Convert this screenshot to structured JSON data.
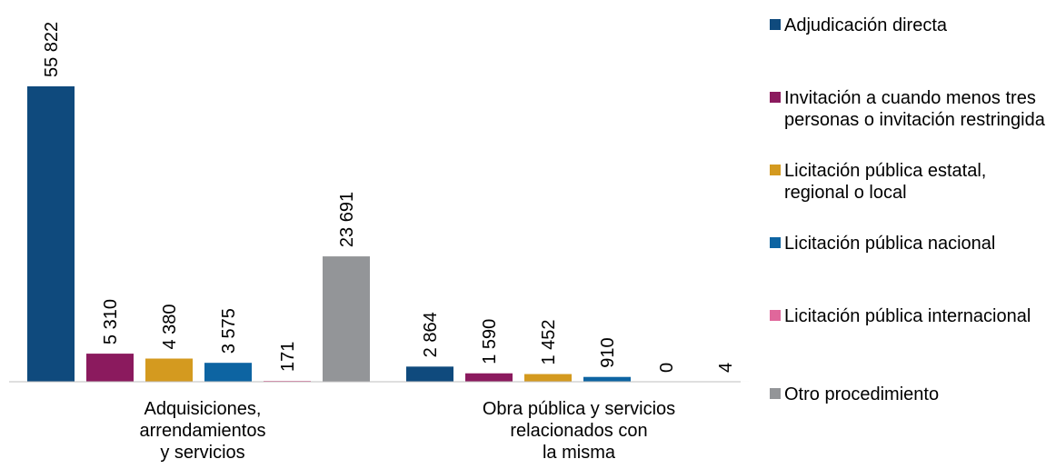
{
  "chart_data": {
    "type": "bar",
    "categories": [
      "Adquisiciones,\narrendamientos\ny servicios",
      "Obra pública y servicios\nrelacionados con\nla misma"
    ],
    "series": [
      {
        "name": "Adjudicación directa",
        "color": "#0f4a7d",
        "values": [
          55822,
          2864
        ]
      },
      {
        "name": "Invitación a cuando menos tres personas o invitación restringida",
        "color": "#8b1a5e",
        "values": [
          5310,
          1590
        ]
      },
      {
        "name": "Licitación pública estatal, regional o local",
        "color": "#d49a1f",
        "values": [
          4380,
          1452
        ]
      },
      {
        "name": "Licitación pública nacional",
        "color": "#0d64a2",
        "values": [
          3575,
          910
        ]
      },
      {
        "name": "Licitación pública internacional",
        "color": "#e0679b",
        "values": [
          171,
          0
        ]
      },
      {
        "name": "Otro procedimiento",
        "color": "#939598",
        "values": [
          23691,
          4
        ]
      }
    ],
    "data_labels": [
      [
        "55 822",
        "2 864"
      ],
      [
        "5 310",
        "1 590"
      ],
      [
        "4 380",
        "1 452"
      ],
      [
        "3 575",
        "910"
      ],
      [
        "171",
        "0"
      ],
      [
        "23 691",
        "4"
      ]
    ],
    "ylim": [
      0,
      55822
    ],
    "grid": false,
    "legend_position": "right"
  }
}
